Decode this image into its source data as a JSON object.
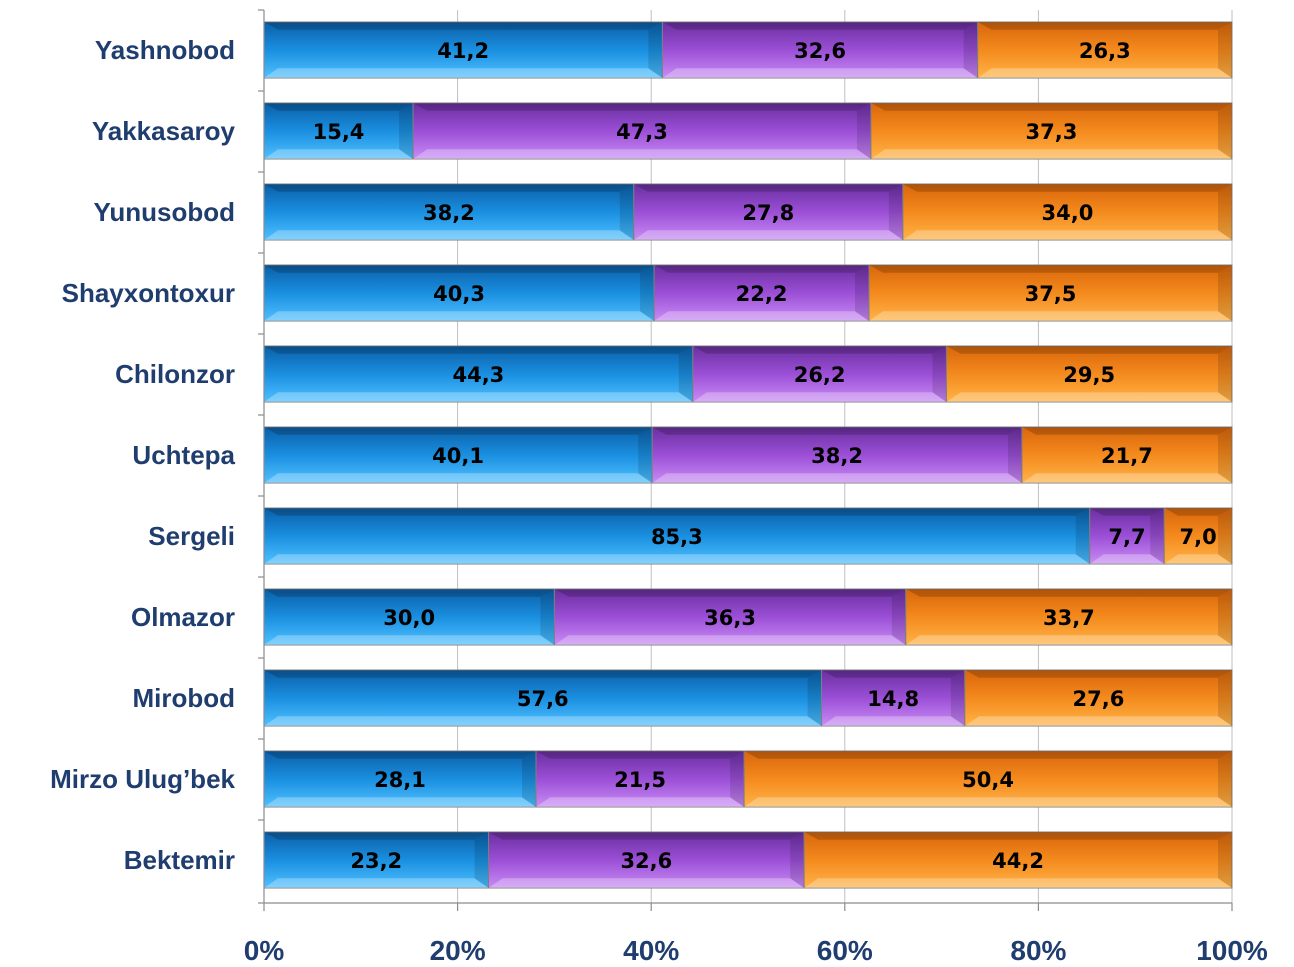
{
  "chart_data": {
    "type": "bar",
    "orientation": "horizontal",
    "stacked": "percent",
    "categories": [
      "Yashnobod",
      "Yakkasaroy",
      "Yunusobod",
      "Shayxontoxur",
      "Chilonzor",
      "Uchtepa",
      "Sergeli",
      "Olmazor",
      "Mirobod",
      "Mirzo Ulug’bek",
      "Bektemir"
    ],
    "series": [
      {
        "values": [
          41.2,
          15.4,
          38.2,
          40.3,
          44.3,
          40.1,
          85.3,
          30.0,
          57.6,
          28.1,
          23.2
        ],
        "labels": [
          "41,2",
          "15,4",
          "38,2",
          "40,3",
          "44,3",
          "40,1",
          "85,3",
          "30,0",
          "57,6",
          "28,1",
          "23,2"
        ],
        "color": "#1a8fe0"
      },
      {
        "values": [
          32.6,
          47.3,
          27.8,
          22.2,
          26.2,
          38.2,
          7.7,
          36.3,
          14.8,
          21.5,
          32.6
        ],
        "labels": [
          "32,6",
          "47,3",
          "27,8",
          "22,2",
          "26,2",
          "38,2",
          "7,7",
          "36,3",
          "14,8",
          "21,5",
          "32,6"
        ],
        "color": "#9b4fd6"
      },
      {
        "values": [
          26.3,
          37.3,
          34.0,
          37.5,
          29.5,
          21.7,
          7.0,
          33.7,
          27.6,
          50.4,
          44.2
        ],
        "labels": [
          "26,3",
          "37,3",
          "34,0",
          "37,5",
          "29,5",
          "21,7",
          "7,0",
          "33,7",
          "27,6",
          "50,4",
          "44,2"
        ],
        "color": "#f48a1e"
      }
    ],
    "x_ticks": [
      "0%",
      "20%",
      "40%",
      "60%",
      "80%",
      "100%"
    ],
    "xlim": [
      0,
      100
    ],
    "grid": true,
    "legend": "none"
  }
}
